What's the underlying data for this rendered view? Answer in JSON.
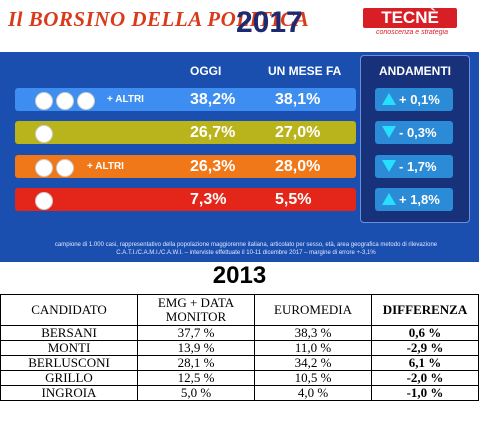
{
  "header": {
    "title": "Il BORSINO DELLA POLITICA",
    "year": "2017",
    "logo": "TECNÈ",
    "logo_sub": "conoscenza e strategia"
  },
  "chart_data": {
    "type": "table",
    "columns": [
      "",
      "OGGI",
      "UN MESE FA",
      "ANDAMENTI"
    ],
    "rows": [
      {
        "altri": "+ ALTRI",
        "oggi": "38,2%",
        "mese": "38,1%",
        "andamento": "+ 0,1%",
        "direction": "up",
        "color": "#3d8ef0"
      },
      {
        "altri": "",
        "oggi": "26,7%",
        "mese": "27,0%",
        "andamento": "- 0,3%",
        "direction": "down",
        "color": "#b9b41c"
      },
      {
        "altri": "+ ALTRI",
        "oggi": "26,3%",
        "mese": "28,0%",
        "andamento": "- 1,7%",
        "direction": "down",
        "color": "#f07818"
      },
      {
        "altri": "",
        "oggi": "7,3%",
        "mese": "5,5%",
        "andamento": "+ 1,8%",
        "direction": "up",
        "color": "#e4261a"
      }
    ],
    "footnote": "campione di 1.000 casi, rappresentativo della popolazione maggiorenne italiana, articolato per sesso, età, area geografica metodo di rilevazione C.A.T.I./C.A.M.I./C.A.W.I. – interviste effettuate il 10-11 dicembre 2017 – margine di errore +-3,1%",
    "year_2013": "2013",
    "table_2013": {
      "headers": [
        "CANDIDATO",
        "EMG + DATA MONITOR",
        "EUROMEDIA",
        "DIFFERENZA"
      ],
      "rows": [
        [
          "BERSANI",
          "37,7 %",
          "38,3 %",
          "0,6 %"
        ],
        [
          "MONTI",
          "13,9 %",
          "11,0 %",
          "-2,9 %"
        ],
        [
          "BERLUSCONI",
          "28,1 %",
          "34,2 %",
          "6,1 %"
        ],
        [
          "GRILLO",
          "12,5 %",
          "10,5 %",
          "-2,0 %"
        ],
        [
          "INGROIA",
          "5,0 %",
          "4,0 %",
          "-1,0 %"
        ]
      ]
    }
  }
}
